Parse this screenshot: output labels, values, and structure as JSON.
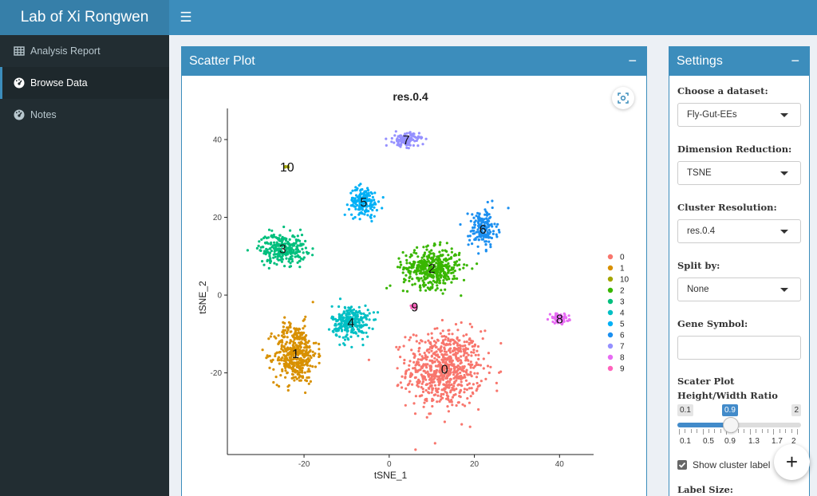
{
  "header": {
    "title": "Lab of Xi Rongwen",
    "menu_icon": "hamburger-icon"
  },
  "sidebar": {
    "items": [
      {
        "label": "Analysis Report",
        "icon": "table-icon"
      },
      {
        "label": "Browse Data",
        "icon": "dashboard-icon",
        "active": true
      },
      {
        "label": "Notes",
        "icon": "dashboard-icon"
      }
    ]
  },
  "plot_panel": {
    "title": "Scatter Plot",
    "collapse": "−",
    "snapshot_icon": "camera-icon"
  },
  "settings": {
    "title": "Settings",
    "collapse": "−",
    "dataset": {
      "label": "Choose a dataset:",
      "value": "Fly-Gut-EEs"
    },
    "reduction": {
      "label": "Dimension Reduction:",
      "value": "TSNE"
    },
    "resolution": {
      "label": "Cluster Resolution:",
      "value": "res.0.4"
    },
    "split": {
      "label": "Split by:",
      "value": "None"
    },
    "gene": {
      "label": "Gene Symbol:",
      "value": ""
    },
    "ratio": {
      "label": "Scater Plot Height/Width Ratio",
      "min": "0.1",
      "max": "2",
      "value": "0.9",
      "ticks": [
        "0.1",
        "0.5",
        "0.9",
        "1.3",
        "1.7",
        "2"
      ]
    },
    "show_label": {
      "label": "Show cluster label",
      "checked": true
    },
    "label_size": {
      "label": "Label Size:"
    }
  },
  "fab": {
    "label": "+"
  },
  "chart_data": {
    "type": "scatter",
    "title": "res.0.4",
    "xlabel": "tSNE_1",
    "ylabel": "tSNE_2",
    "xlim": [
      -38,
      48
    ],
    "ylim": [
      -41,
      48
    ],
    "xticks": [
      -20,
      0,
      20,
      40
    ],
    "yticks": [
      -20,
      0,
      20,
      40
    ],
    "legend_position": "right",
    "clusters": [
      {
        "name": "0",
        "color": "#F8766D",
        "center": [
          13,
          -19
        ],
        "n": 700,
        "spread": [
          8,
          9
        ]
      },
      {
        "name": "1",
        "color": "#D89000",
        "center": [
          -22,
          -15
        ],
        "n": 420,
        "spread": [
          4.5,
          7
        ]
      },
      {
        "name": "10",
        "color": "#A3A500",
        "center": [
          -24,
          33
        ],
        "n": 6,
        "spread": [
          0.5,
          0.3
        ]
      },
      {
        "name": "2",
        "color": "#39B600",
        "center": [
          10,
          7
        ],
        "n": 430,
        "spread": [
          6,
          4.5
        ]
      },
      {
        "name": "3",
        "color": "#00BF7D",
        "center": [
          -25,
          12
        ],
        "n": 260,
        "spread": [
          5,
          3.5
        ]
      },
      {
        "name": "4",
        "color": "#00BFC4",
        "center": [
          -9,
          -7
        ],
        "n": 260,
        "spread": [
          4,
          4
        ]
      },
      {
        "name": "5",
        "color": "#00B0F6",
        "center": [
          -6,
          24
        ],
        "n": 170,
        "spread": [
          3,
          3.5
        ]
      },
      {
        "name": "6",
        "color": "#1B8FF0",
        "center": [
          22,
          17
        ],
        "n": 170,
        "spread": [
          3,
          4.5
        ]
      },
      {
        "name": "7",
        "color": "#9590FF",
        "center": [
          4,
          40
        ],
        "n": 130,
        "spread": [
          2.8,
          1.6
        ]
      },
      {
        "name": "8",
        "color": "#E76BF3",
        "center": [
          40,
          -6
        ],
        "n": 70,
        "spread": [
          2,
          1.1
        ]
      },
      {
        "name": "9",
        "color": "#FF62BC",
        "center": [
          6,
          -3
        ],
        "n": 14,
        "spread": [
          0.6,
          0.6
        ]
      }
    ]
  }
}
